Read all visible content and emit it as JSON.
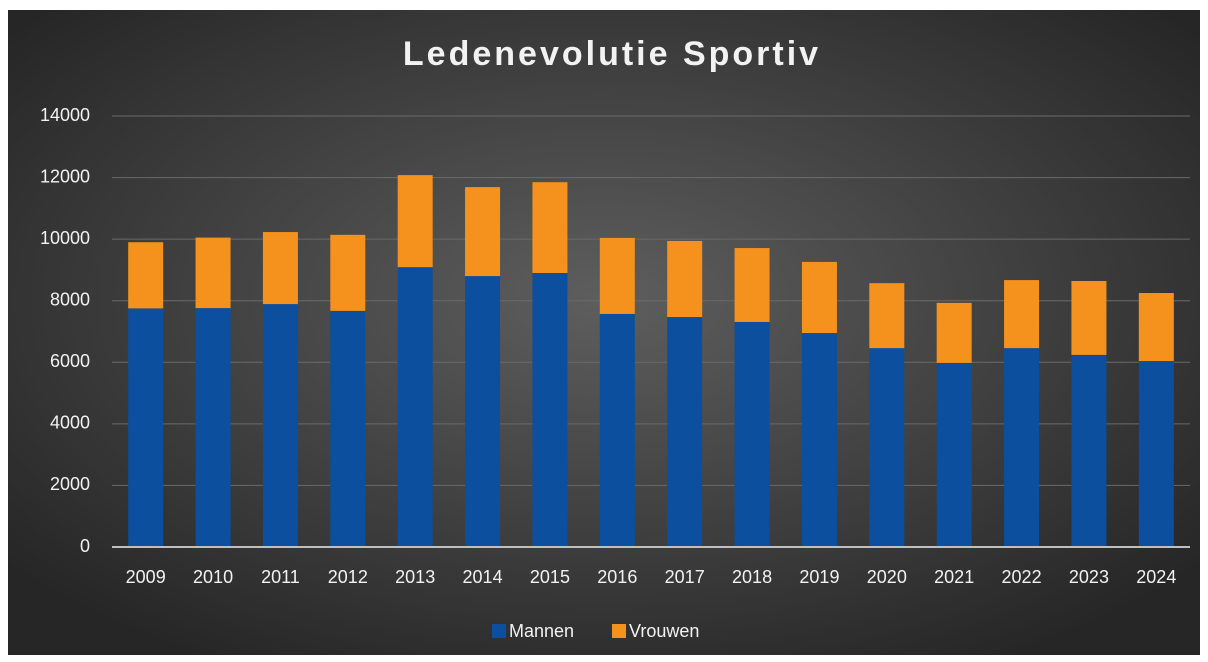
{
  "chart_data": {
    "type": "stacked_bar",
    "title": "Ledenevolutie Sportiv",
    "categories": [
      "2009",
      "2010",
      "2011",
      "2012",
      "2013",
      "2014",
      "2015",
      "2016",
      "2017",
      "2018",
      "2019",
      "2020",
      "2021",
      "2022",
      "2023",
      "2024"
    ],
    "series": [
      {
        "name": "Mannen",
        "color": "#0b4f9e",
        "values": [
          7750,
          7760,
          7890,
          7670,
          9090,
          8800,
          8900,
          7570,
          7470,
          7310,
          6950,
          6460,
          5980,
          6460,
          6240,
          6040
        ]
      },
      {
        "name": "Vrouwen",
        "color": "#f5921e",
        "values": [
          2150,
          2290,
          2340,
          2470,
          2990,
          2890,
          2950,
          2470,
          2470,
          2400,
          2310,
          2110,
          1950,
          2210,
          2400,
          2210
        ]
      }
    ],
    "ylim": [
      0,
      14000
    ],
    "yticks": [
      0,
      2000,
      4000,
      6000,
      8000,
      10000,
      12000,
      14000
    ],
    "grid": true,
    "legend": "bottom"
  }
}
